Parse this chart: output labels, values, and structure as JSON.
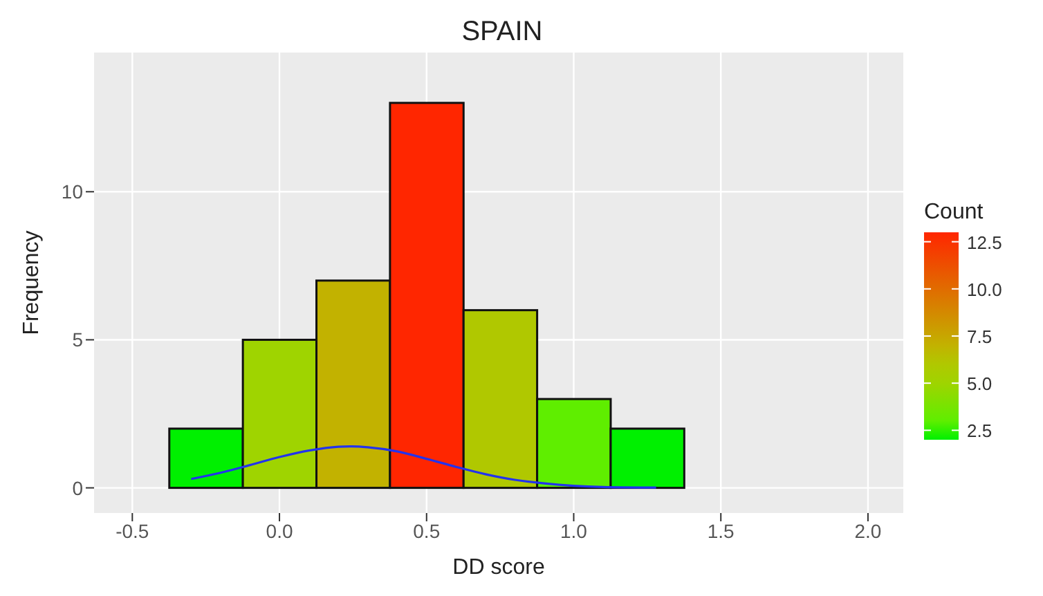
{
  "chart_data": {
    "type": "histogram",
    "title": "SPAIN",
    "xlabel": "DD score",
    "ylabel": "Frequency",
    "clabel": "Count",
    "bins": [
      -0.375,
      -0.125,
      0.125,
      0.375,
      0.625,
      0.875,
      1.125,
      1.375
    ],
    "values": [
      2,
      5,
      7,
      13,
      6,
      3,
      2
    ],
    "colors": [
      "#00f000",
      "#9fd400",
      "#c2b200",
      "#ff2600",
      "#b0c800",
      "#5fee00",
      "#00f000"
    ],
    "series": [
      {
        "type": "line",
        "color": "#2233ee",
        "x": [
          -0.3,
          -0.2,
          -0.1,
          0.0,
          0.1,
          0.2,
          0.24,
          0.3,
          0.4,
          0.5,
          0.6,
          0.7,
          0.8,
          0.9,
          1.0,
          1.1,
          1.28
        ],
        "values": [
          0.3,
          0.51,
          0.77,
          1.04,
          1.26,
          1.39,
          1.4,
          1.37,
          1.23,
          0.98,
          0.71,
          0.46,
          0.27,
          0.15,
          0.07,
          0.03,
          0.01
        ]
      }
    ],
    "xlim": [
      -0.63,
      2.12
    ],
    "xticks": [
      -0.5,
      {
        "value": 0,
        "label": "0.0"
      },
      0.5,
      {
        "value": 1,
        "label": "1.0"
      },
      1.5,
      {
        "value": 2,
        "label": "2.0"
      }
    ],
    "ylim": [
      -0.85,
      14.7
    ],
    "yticks": [
      0,
      5,
      10
    ],
    "clim": [
      2,
      13
    ],
    "cticks": [
      2.5,
      {
        "value": 5,
        "label": "5.0"
      },
      7.5,
      {
        "value": 10,
        "label": "10.0"
      },
      12.5
    ],
    "grid": true
  }
}
